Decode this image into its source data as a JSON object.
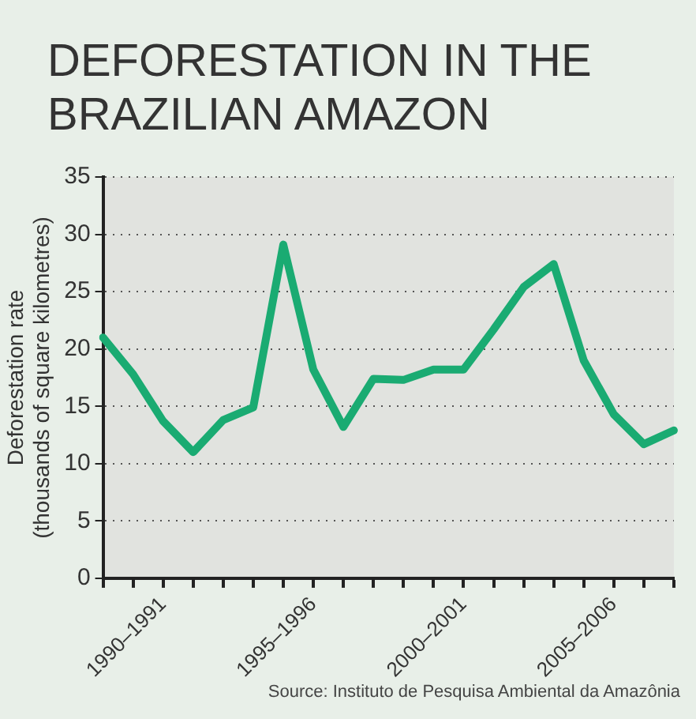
{
  "chart_data": {
    "type": "line",
    "title": "DEFORESTATION IN THE BRAZILIAN AMAZON",
    "ylabel": "Deforestation rate (thousands of square kilometres)",
    "categories": [
      null,
      null,
      "1990–1991",
      null,
      null,
      null,
      null,
      "1995–1996",
      null,
      null,
      null,
      null,
      "2000–2001",
      null,
      null,
      null,
      null,
      "2005–2006",
      null,
      null
    ],
    "series": [
      {
        "color": "#1aab72",
        "values": [
          21,
          17.8,
          13.7,
          11,
          13.8,
          14.9,
          29.1,
          18.2,
          13.2,
          17.4,
          17.3,
          18.2,
          18.2,
          21.7,
          25.4,
          27.4,
          19,
          14.3,
          11.7,
          12.9
        ]
      }
    ],
    "ylim": [
      0,
      35
    ],
    "yticks": [
      0,
      5,
      10,
      15,
      20,
      25,
      30,
      35
    ],
    "grid": "y",
    "legend": false,
    "marker": "none",
    "line_style": "solid",
    "annotations": [
      "Source: Instituto de Pesquisa Ambiental da Amazônia"
    ]
  }
}
